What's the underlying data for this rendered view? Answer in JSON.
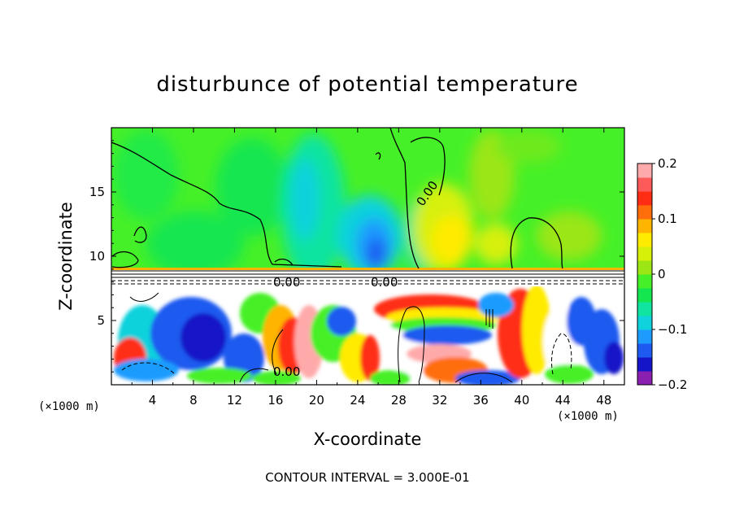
{
  "chart_data": {
    "type": "heatmap",
    "title": "disturbunce of potential temperature",
    "xlabel": "X-coordinate",
    "ylabel": "Z-coordinate",
    "x_unit": "(×1000 m)",
    "y_unit": "(×1000 m)",
    "x_ticks": [
      "4",
      "8",
      "12",
      "16",
      "20",
      "24",
      "28",
      "32",
      "36",
      "40",
      "44",
      "48"
    ],
    "y_ticks": [
      "5",
      "10",
      "15"
    ],
    "xlim": [
      0,
      50
    ],
    "ylim": [
      0,
      20
    ],
    "colorbar": {
      "labels": [
        "0.2",
        "0.1",
        "0",
        "−0.1",
        "−0.2"
      ],
      "range": [
        -0.2,
        0.2
      ],
      "colors": [
        "#8a1fb0",
        "#1414c8",
        "#1e5af0",
        "#1e9bff",
        "#10d2dc",
        "#10e4a0",
        "#14e650",
        "#46f028",
        "#9be614",
        "#d7f00a",
        "#ffeb00",
        "#ffb400",
        "#ff6e0a",
        "#ff2d14",
        "#ff5a5a",
        "#ffaaaa"
      ]
    },
    "contour_labels": [
      "0.00",
      "0.00",
      "0.00",
      "0.00"
    ],
    "footnote": "CONTOUR INTERVAL = 3.000E-01"
  }
}
